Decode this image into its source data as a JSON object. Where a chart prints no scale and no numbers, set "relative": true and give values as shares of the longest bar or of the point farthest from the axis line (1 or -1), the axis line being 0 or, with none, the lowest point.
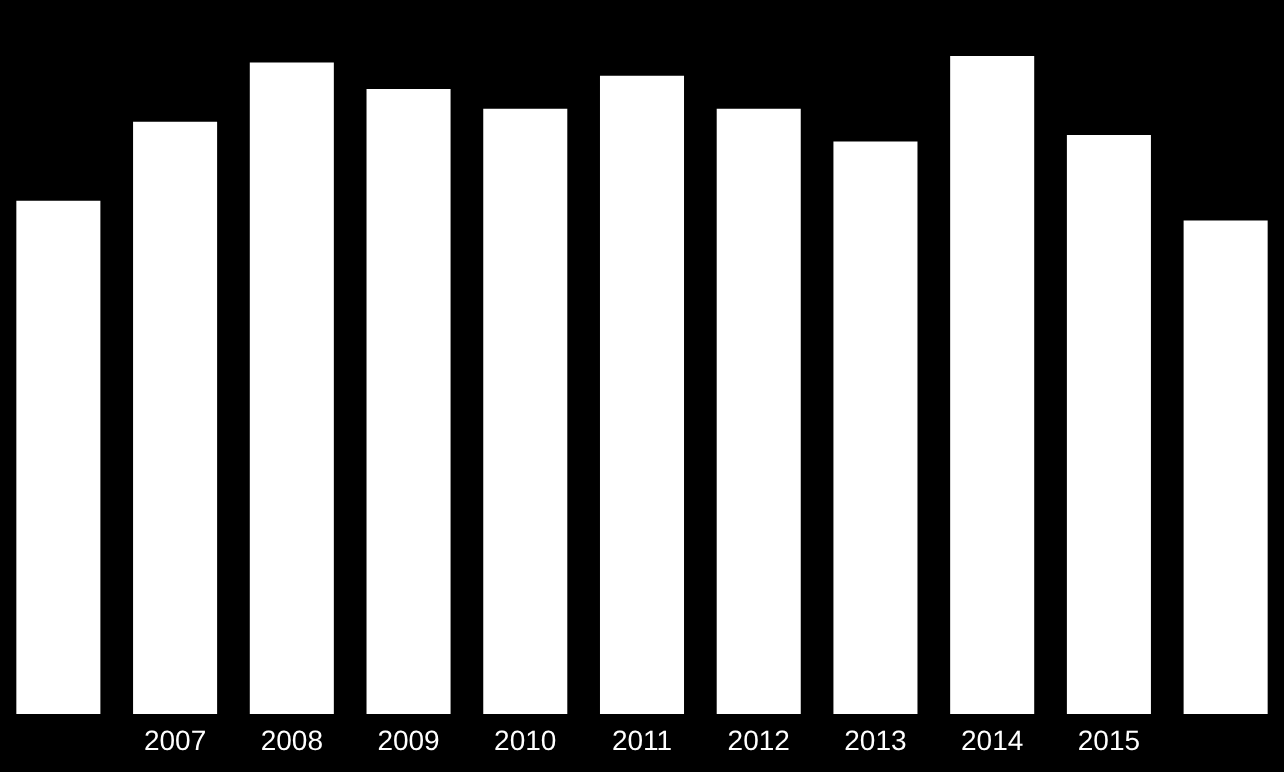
{
  "chart_data": {
    "type": "bar",
    "relative": true,
    "categories": [
      null,
      "2007",
      "2008",
      "2009",
      "2010",
      "2011",
      "2012",
      "2013",
      "2014",
      "2015",
      null
    ],
    "values": [
      0.78,
      0.9,
      0.99,
      0.95,
      0.92,
      0.97,
      0.92,
      0.87,
      1,
      0.88,
      0.75
    ],
    "color": "#ffffff"
  }
}
